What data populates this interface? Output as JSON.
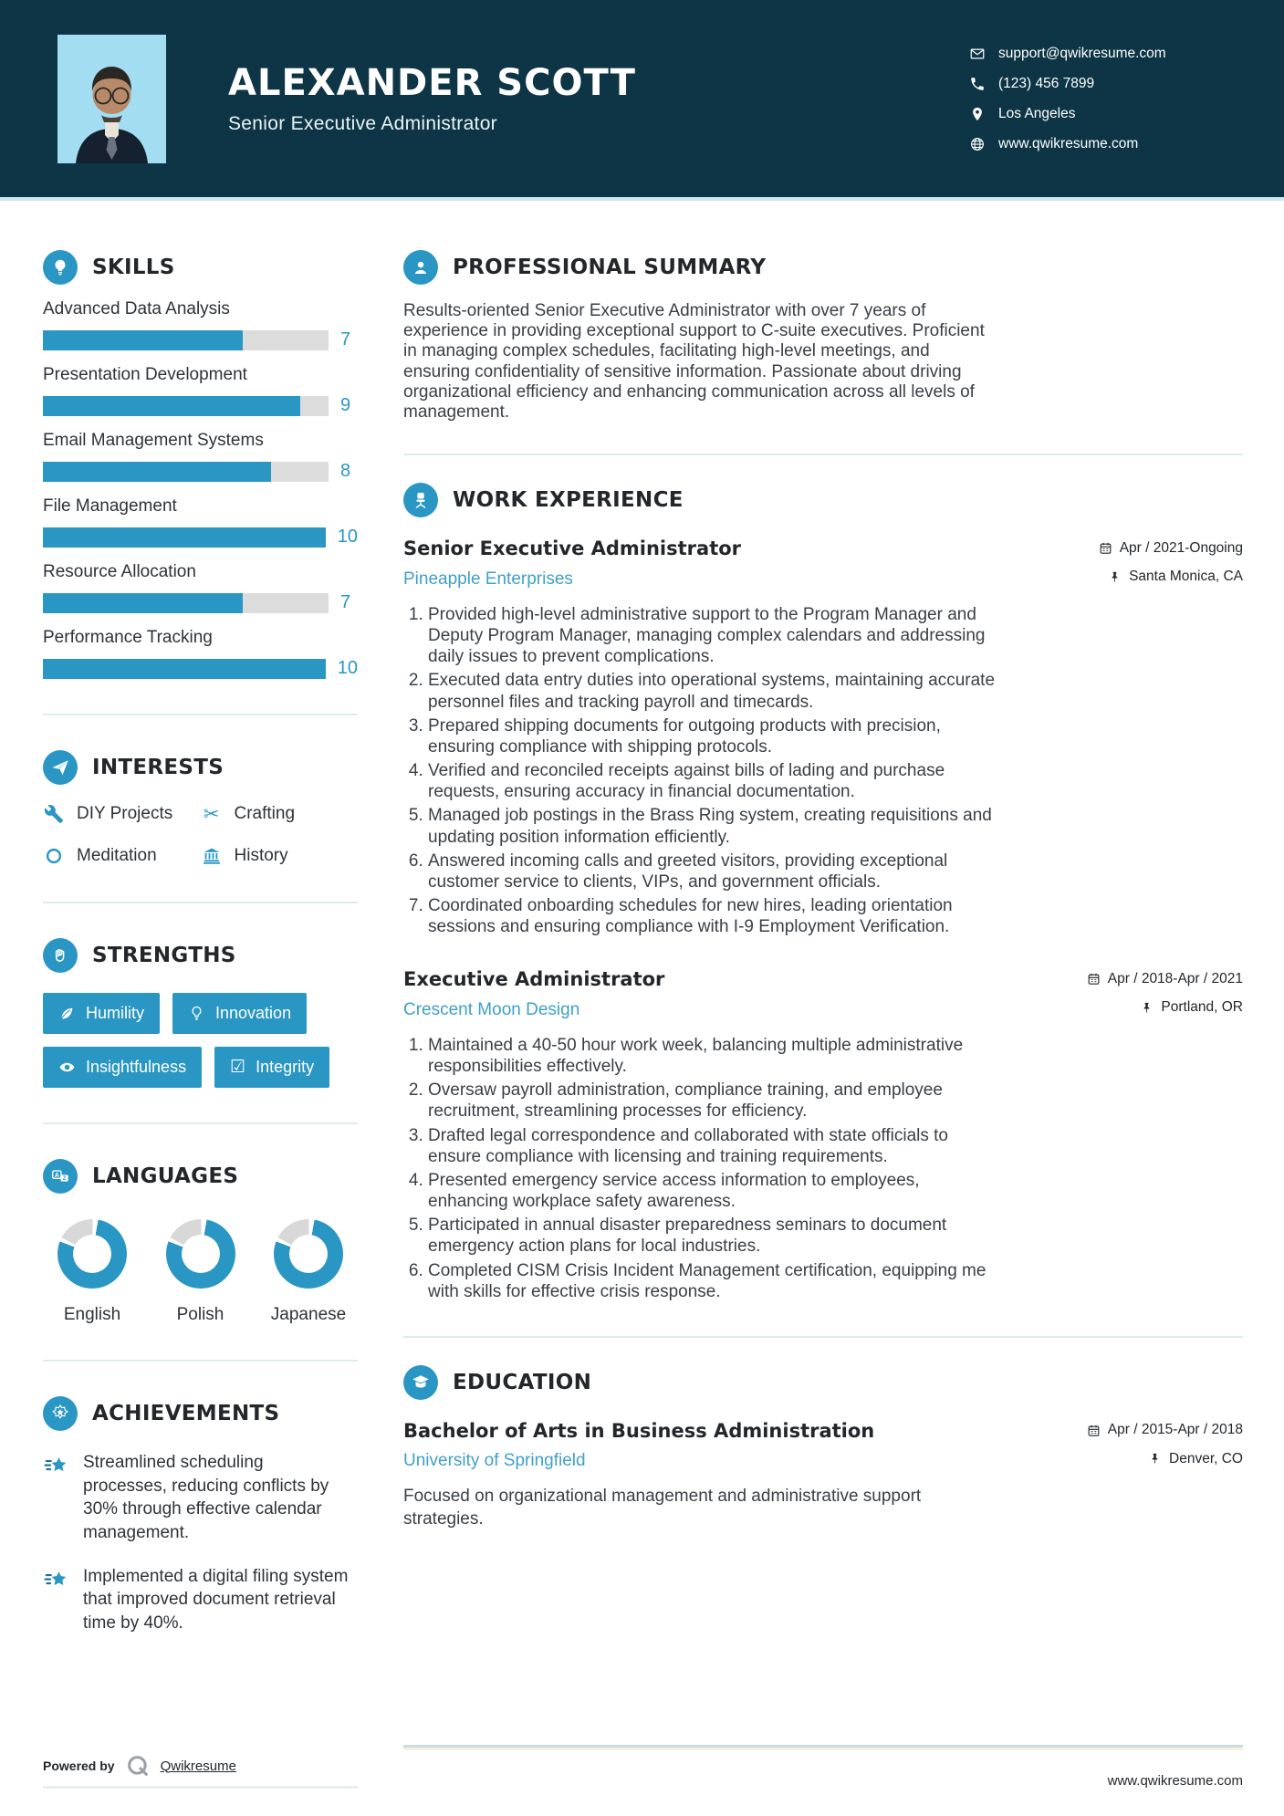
{
  "colors": {
    "accent": "#2a96c3",
    "header_bg": "#0d3545",
    "link": "#3fa0c8",
    "photo_bg": "#a3ddf2"
  },
  "header": {
    "name": "ALEXANDER SCOTT",
    "title": "Senior Executive Administrator",
    "contacts": [
      {
        "icon": "email-icon",
        "text": "support@qwikresume.com"
      },
      {
        "icon": "phone-icon",
        "text": "(123) 456 7899"
      },
      {
        "icon": "location-icon",
        "text": "Los Angeles"
      },
      {
        "icon": "globe-icon",
        "text": "www.qwikresume.com"
      }
    ]
  },
  "skills": {
    "heading": "SKILLS",
    "items": [
      {
        "name": "Advanced Data Analysis",
        "score": 7,
        "max": 10
      },
      {
        "name": "Presentation Development",
        "score": 9,
        "max": 10
      },
      {
        "name": "Email Management Systems",
        "score": 8,
        "max": 10
      },
      {
        "name": "File Management",
        "score": 10,
        "max": 10
      },
      {
        "name": "Resource Allocation",
        "score": 7,
        "max": 10
      },
      {
        "name": "Performance Tracking",
        "score": 10,
        "max": 10
      }
    ]
  },
  "interests": {
    "heading": "INTERESTS",
    "items": [
      {
        "icon": "wrench-icon",
        "label": "DIY Projects"
      },
      {
        "icon": "scissors-icon",
        "label": "Crafting"
      },
      {
        "icon": "circle-icon",
        "label": "Meditation"
      },
      {
        "icon": "museum-icon",
        "label": "History"
      }
    ]
  },
  "strengths": {
    "heading": "STRENGTHS",
    "items": [
      {
        "icon": "leaf-icon",
        "label": "Humility"
      },
      {
        "icon": "lightbulb-icon",
        "label": "Innovation"
      },
      {
        "icon": "eye-icon",
        "label": "Insightfulness"
      },
      {
        "icon": "checkbox-icon",
        "label": "Integrity"
      }
    ]
  },
  "languages": {
    "heading": "LANGUAGES",
    "items": [
      {
        "label": "English",
        "percent": 80
      },
      {
        "label": "Polish",
        "percent": 80
      },
      {
        "label": "Japanese",
        "percent": 80
      }
    ]
  },
  "achievements": {
    "heading": "ACHIEVEMENTS",
    "items": [
      "Streamlined scheduling processes, reducing conflicts by 30% through effective calendar management.",
      "Implemented a digital filing system that improved document retrieval time by 40%."
    ]
  },
  "summary": {
    "heading": "PROFESSIONAL SUMMARY",
    "text": "Results-oriented Senior Executive Administrator with over 7 years of experience in providing exceptional support to C-suite executives. Proficient in managing complex schedules, facilitating high-level meetings, and ensuring confidentiality of sensitive information. Passionate about driving organizational efficiency and enhancing communication across all levels of management."
  },
  "experience": {
    "heading": "WORK EXPERIENCE",
    "jobs": [
      {
        "title": "Senior Executive Administrator",
        "company": "Pineapple Enterprises",
        "dates": "Apr / 2021-Ongoing",
        "location": "Santa Monica, CA",
        "bullets": [
          "Provided high-level administrative support to the Program Manager and Deputy Program Manager, managing complex calendars and addressing daily issues to prevent complications.",
          "Executed data entry duties into operational systems, maintaining accurate personnel files and tracking payroll and timecards.",
          "Prepared shipping documents for outgoing products with precision, ensuring compliance with shipping protocols.",
          "Verified and reconciled receipts against bills of lading and purchase requests, ensuring accuracy in financial documentation.",
          "Managed job postings in the Brass Ring system, creating requisitions and updating position information efficiently.",
          "Answered incoming calls and greeted visitors, providing exceptional customer service to clients, VIPs, and government officials.",
          "Coordinated onboarding schedules for new hires, leading orientation sessions and ensuring compliance with I-9 Employment Verification."
        ]
      },
      {
        "title": "Executive Administrator",
        "company": "Crescent Moon Design",
        "dates": "Apr / 2018-Apr / 2021",
        "location": "Portland, OR",
        "bullets": [
          "Maintained a 40-50 hour work week, balancing multiple administrative responsibilities effectively.",
          "Oversaw payroll administration, compliance training, and employee recruitment, streamlining processes for efficiency.",
          "Drafted legal correspondence and collaborated with state officials to ensure compliance with licensing and training requirements.",
          "Presented emergency service access information to employees, enhancing workplace safety awareness.",
          "Participated in annual disaster preparedness seminars to document emergency action plans for local industries.",
          "Completed CISM Crisis Incident Management certification, equipping me with skills for effective crisis response."
        ]
      }
    ]
  },
  "education": {
    "heading": "EDUCATION",
    "degree": "Bachelor of Arts in Business Administration",
    "school": "University of Springfield",
    "dates": "Apr / 2015-Apr / 2018",
    "location": "Denver, CO",
    "description": "Focused on organizational management and administrative support strategies."
  },
  "footer": {
    "powered_by": "Powered by",
    "brand": "Qwikresume",
    "site": "www.qwikresume.com"
  }
}
